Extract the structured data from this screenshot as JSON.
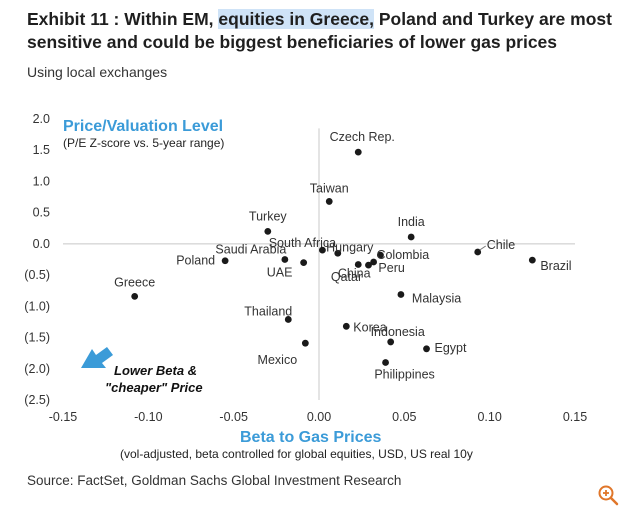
{
  "header": {
    "title_pre": "Exhibit 11 : Within EM, ",
    "title_highlight": "equities in Greece,",
    "title_post": " Poland and Turkey are most sensitive and could be biggest beneficiaries of lower gas prices",
    "subtitle": "Using local exchanges"
  },
  "source": "Source: FactSet, Goldman Sachs Global Investment Research",
  "icons": {
    "zoom": "zoom-in-icon",
    "arrow": "arrow-down-left-icon"
  },
  "colors": {
    "accent": "#3b9bd8",
    "marker": "#1a1a1a",
    "highlight": "#cfe3f7"
  },
  "chart_data": {
    "type": "scatter",
    "ylabel": "Price/Valuation Level",
    "ylabel_note": "(P/E Z-score vs. 5-year range)",
    "xlabel": "Beta to Gas Prices",
    "xlabel_note": "(vol-adjusted, beta controlled for global equities, USD, US real 10y",
    "annotation_line1": "Lower Beta &",
    "annotation_line2": "\"cheaper\" Price",
    "xlim": [
      -0.15,
      0.15
    ],
    "ylim": [
      -2.5,
      2.0
    ],
    "x_ticks": [
      {
        "value": -0.15,
        "label": "-0.15"
      },
      {
        "value": -0.1,
        "label": "-0.10"
      },
      {
        "value": -0.05,
        "label": "-0.05"
      },
      {
        "value": 0.0,
        "label": "0.00"
      },
      {
        "value": 0.05,
        "label": "0.05"
      },
      {
        "value": 0.1,
        "label": "0.10"
      },
      {
        "value": 0.15,
        "label": "0.15"
      }
    ],
    "y_ticks": [
      {
        "value": 2.0,
        "label": "2.0"
      },
      {
        "value": 1.5,
        "label": "1.5"
      },
      {
        "value": 1.0,
        "label": "1.0"
      },
      {
        "value": 0.5,
        "label": "0.5"
      },
      {
        "value": 0.0,
        "label": "0.0"
      },
      {
        "value": -0.5,
        "label": "(0.5)"
      },
      {
        "value": -1.0,
        "label": "(1.0)"
      },
      {
        "value": -1.5,
        "label": "(1.5)"
      },
      {
        "value": -2.0,
        "label": "(2.0)"
      },
      {
        "value": -2.5,
        "label": "(2.5)"
      }
    ],
    "points": [
      {
        "name": "Czech Rep.",
        "x": 0.023,
        "y": 1.47
      },
      {
        "name": "Taiwan",
        "x": 0.006,
        "y": 0.68
      },
      {
        "name": "Turkey",
        "x": -0.03,
        "y": 0.2
      },
      {
        "name": "India",
        "x": 0.054,
        "y": 0.11
      },
      {
        "name": "South Africa",
        "x": 0.002,
        "y": -0.1
      },
      {
        "name": "Hungary",
        "x": 0.011,
        "y": -0.15
      },
      {
        "name": "Chile",
        "x": 0.093,
        "y": -0.13
      },
      {
        "name": "Colombia",
        "x": 0.036,
        "y": -0.18
      },
      {
        "name": "Brazil",
        "x": 0.125,
        "y": -0.26
      },
      {
        "name": "Saudi Arabia",
        "x": -0.02,
        "y": -0.25
      },
      {
        "name": "Poland",
        "x": -0.055,
        "y": -0.27
      },
      {
        "name": "China",
        "x": 0.023,
        "y": -0.33
      },
      {
        "name": "Peru",
        "x": 0.032,
        "y": -0.29
      },
      {
        "name": "UAE",
        "x": -0.009,
        "y": -0.3
      },
      {
        "name": "Qatar",
        "x": 0.029,
        "y": -0.34
      },
      {
        "name": "Greece",
        "x": -0.108,
        "y": -0.84
      },
      {
        "name": "Malaysia",
        "x": 0.048,
        "y": -0.81
      },
      {
        "name": "Thailand",
        "x": -0.018,
        "y": -1.21
      },
      {
        "name": "Korea",
        "x": 0.016,
        "y": -1.32
      },
      {
        "name": "Indonesia",
        "x": 0.042,
        "y": -1.57
      },
      {
        "name": "Mexico",
        "x": -0.008,
        "y": -1.59
      },
      {
        "name": "Egypt",
        "x": 0.063,
        "y": -1.68
      },
      {
        "name": "Philippines",
        "x": 0.039,
        "y": -1.9
      }
    ]
  }
}
